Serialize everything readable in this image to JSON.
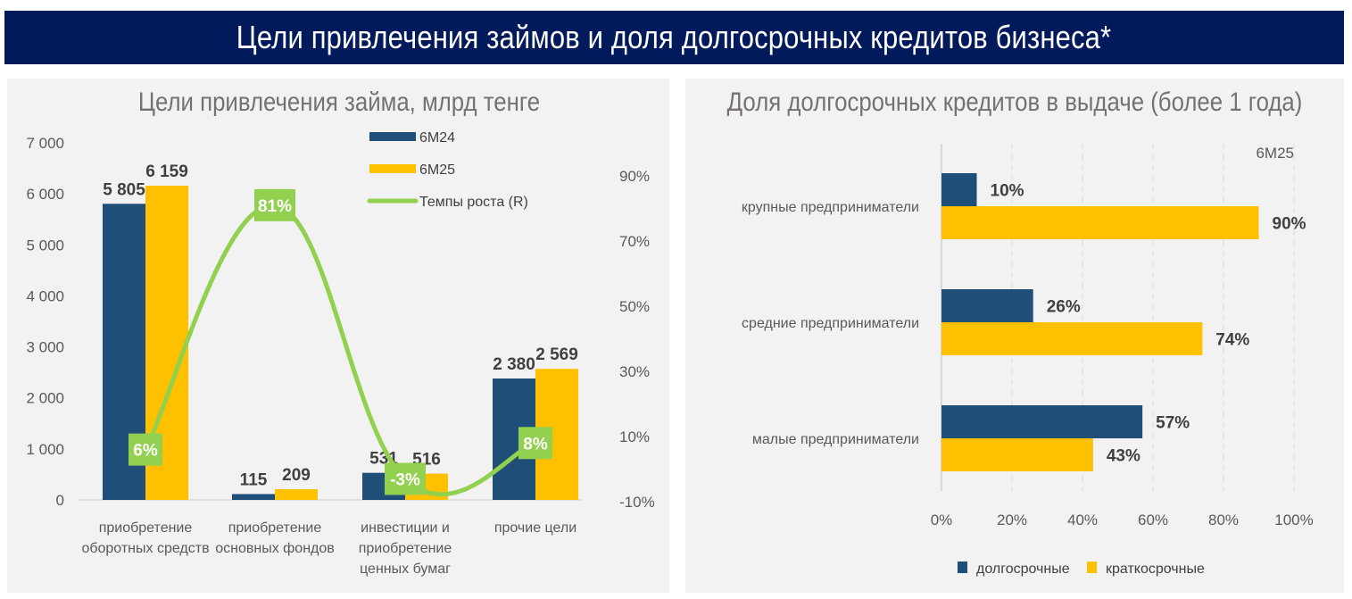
{
  "header": {
    "title": "Цели привлечения займов и доля долгосрочных кредитов бизнеса*"
  },
  "colors": {
    "banner": "#001a5c",
    "series_6m24": "#1f4e79",
    "series_6m25": "#ffc000",
    "growth": "#92d050",
    "panel": "#f2f2f2"
  },
  "chart_data": [
    {
      "type": "bar",
      "title": "Цели привлечения займа, млрд тенге",
      "categories": [
        [
          "приобретение",
          "оборотных средств"
        ],
        [
          "приобретение",
          "основных фондов"
        ],
        [
          "инвестиции и",
          "приобретение",
          "ценных бумаг"
        ],
        [
          "прочие цели"
        ]
      ],
      "series": [
        {
          "name": "6М24",
          "values": [
            5805,
            115,
            531,
            2380
          ],
          "labels": [
            "5 805",
            "115",
            "531",
            "2 380"
          ]
        },
        {
          "name": "6М25",
          "values": [
            6159,
            209,
            516,
            2569
          ],
          "labels": [
            "6 159",
            "209",
            "516",
            "2 569"
          ]
        }
      ],
      "line_series": {
        "name": "Темпы роста (R)",
        "values": [
          6,
          81,
          -3,
          8
        ],
        "labels": [
          "6%",
          "81%",
          "-3%",
          "8%"
        ],
        "axis": "right"
      },
      "ylim": [
        0,
        7000
      ],
      "yticks": [
        "0",
        "1 000",
        "2 000",
        "3 000",
        "4 000",
        "5 000",
        "6 000",
        "7 000"
      ],
      "y2lim": [
        -10,
        90
      ],
      "y2ticks": [
        "-10%",
        "10%",
        "30%",
        "50%",
        "70%",
        "90%"
      ],
      "legend": [
        "6М24",
        "6М25",
        "Темпы роста (R)"
      ],
      "legend_position": "top-center",
      "grid": false
    },
    {
      "type": "bar",
      "orientation": "horizontal",
      "title": "Доля долгосрочных кредитов в выдаче (более 1 года)",
      "subtitle": "6М25",
      "categories": [
        "крупные предприниматели",
        "средние предприниматели",
        "малые предприниматели"
      ],
      "series": [
        {
          "name": "долгосрочные",
          "values": [
            10,
            26,
            57
          ],
          "labels": [
            "10%",
            "26%",
            "57%"
          ]
        },
        {
          "name": "краткосрочные",
          "values": [
            90,
            74,
            43
          ],
          "labels": [
            "90%",
            "74%",
            "43%"
          ]
        }
      ],
      "xlim": [
        0,
        100
      ],
      "xticks": [
        "0%",
        "20%",
        "40%",
        "60%",
        "80%",
        "100%"
      ],
      "legend_position": "bottom",
      "grid": true
    }
  ]
}
